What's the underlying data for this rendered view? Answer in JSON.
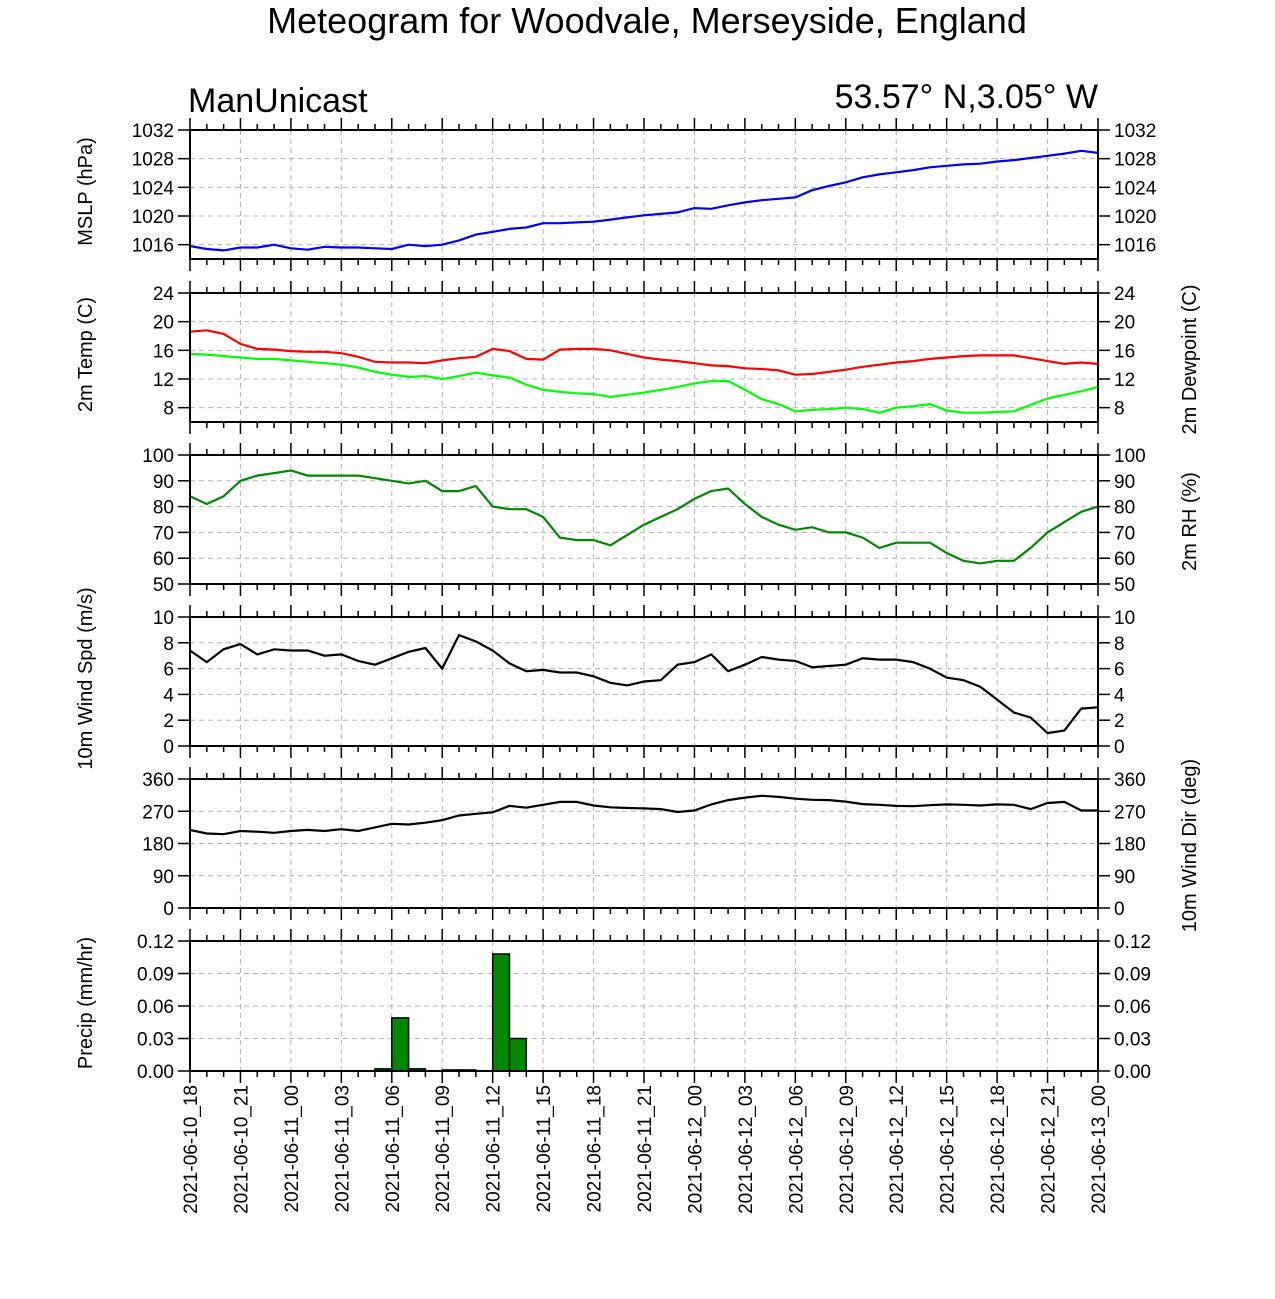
{
  "header": {
    "title": "Meteogram for Woodvale, Merseyside, England",
    "left_label": "ManUnicast",
    "right_label": "53.57° N,3.05° W"
  },
  "x_tick_labels": [
    "2021-06-10_18",
    "2021-06-10_21",
    "2021-06-11_00",
    "2021-06-11_03",
    "2021-06-11_06",
    "2021-06-11_09",
    "2021-06-11_12",
    "2021-06-11_15",
    "2021-06-11_18",
    "2021-06-11_21",
    "2021-06-12_00",
    "2021-06-12_03",
    "2021-06-12_06",
    "2021-06-12_09",
    "2021-06-12_12",
    "2021-06-12_15",
    "2021-06-12_18",
    "2021-06-12_21",
    "2021-06-13_00"
  ],
  "chart_data": [
    {
      "type": "line",
      "ylabel": "MSLP (hPa)",
      "ylim": [
        1014,
        1032
      ],
      "yticks": [
        1016,
        1020,
        1024,
        1028,
        1032
      ],
      "grid": true,
      "x": [
        0,
        1,
        2,
        3,
        4,
        5,
        6,
        7,
        8,
        9,
        10,
        11,
        12,
        13,
        14,
        15,
        16,
        17,
        18,
        19,
        20,
        21,
        22,
        23,
        24,
        25,
        26,
        27,
        28,
        29,
        30,
        31,
        32,
        33,
        34,
        35,
        36,
        37,
        38,
        39,
        40,
        41,
        42,
        43,
        44,
        45,
        46,
        47,
        48,
        49,
        50,
        51,
        52,
        53,
        54
      ],
      "series": [
        {
          "color": "#0000ff",
          "values": [
            1015.8,
            1015.4,
            1015.2,
            1015.6,
            1015.6,
            1016.0,
            1015.5,
            1015.3,
            1015.7,
            1015.6,
            1015.6,
            1015.5,
            1015.4,
            1016.0,
            1015.8,
            1016.0,
            1016.6,
            1017.4,
            1017.8,
            1018.2,
            1018.4,
            1019.0,
            1019.0,
            1019.1,
            1019.2,
            1019.5,
            1019.8,
            1020.1,
            1020.3,
            1020.5,
            1021.1,
            1021.0,
            1021.5,
            1021.9,
            1022.2,
            1022.4,
            1022.6,
            1023.6,
            1024.2,
            1024.7,
            1025.4,
            1025.8,
            1026.1,
            1026.4,
            1026.8,
            1027.0,
            1027.2,
            1027.3,
            1027.6,
            1027.8,
            1028.1,
            1028.4,
            1028.7,
            1029.1,
            1028.8
          ]
        }
      ]
    },
    {
      "type": "line",
      "ylabel": "2m Temp (C)",
      "ylabel_right": "2m Dewpoint (C)",
      "ylim": [
        6,
        24
      ],
      "yticks": [
        8,
        12,
        16,
        20,
        24
      ],
      "grid": true,
      "x": [
        0,
        1,
        2,
        3,
        4,
        5,
        6,
        7,
        8,
        9,
        10,
        11,
        12,
        13,
        14,
        15,
        16,
        17,
        18,
        19,
        20,
        21,
        22,
        23,
        24,
        25,
        26,
        27,
        28,
        29,
        30,
        31,
        32,
        33,
        34,
        35,
        36,
        37,
        38,
        39,
        40,
        41,
        42,
        43,
        44,
        45,
        46,
        47,
        48,
        49,
        50,
        51,
        52,
        53,
        54
      ],
      "series": [
        {
          "color": "#ff0000",
          "values": [
            18.6,
            18.8,
            18.3,
            16.9,
            16.2,
            16.1,
            15.9,
            15.8,
            15.8,
            15.6,
            15.1,
            14.4,
            14.3,
            14.3,
            14.2,
            14.6,
            14.9,
            15.1,
            16.2,
            15.9,
            14.8,
            14.7,
            16.1,
            16.2,
            16.2,
            16.0,
            15.5,
            15.0,
            14.7,
            14.5,
            14.2,
            13.9,
            13.8,
            13.5,
            13.4,
            13.2,
            12.6,
            12.7,
            13.0,
            13.3,
            13.7,
            14.0,
            14.3,
            14.5,
            14.8,
            15.0,
            15.2,
            15.3,
            15.3,
            15.3,
            14.9,
            14.5,
            14.1,
            14.3,
            14.1
          ]
        },
        {
          "color": "#00ff00",
          "values": [
            15.5,
            15.4,
            15.2,
            15.0,
            14.8,
            14.8,
            14.6,
            14.4,
            14.2,
            14.0,
            13.6,
            13.0,
            12.6,
            12.3,
            12.4,
            12.0,
            12.4,
            12.9,
            12.5,
            12.2,
            11.2,
            10.5,
            10.2,
            10.0,
            9.9,
            9.5,
            9.8,
            10.1,
            10.5,
            10.9,
            11.4,
            11.7,
            11.7,
            10.5,
            9.2,
            8.5,
            7.5,
            7.7,
            7.8,
            8.0,
            7.8,
            7.3,
            8.0,
            8.2,
            8.5,
            7.6,
            7.3,
            7.3,
            7.4,
            7.5,
            8.4,
            9.3,
            9.8,
            10.3,
            10.9
          ]
        }
      ]
    },
    {
      "type": "line",
      "ylabel_right": "2m RH (%)",
      "ylim": [
        50,
        100
      ],
      "yticks": [
        50,
        60,
        70,
        80,
        90,
        100
      ],
      "grid": true,
      "x": [
        0,
        1,
        2,
        3,
        4,
        5,
        6,
        7,
        8,
        9,
        10,
        11,
        12,
        13,
        14,
        15,
        16,
        17,
        18,
        19,
        20,
        21,
        22,
        23,
        24,
        25,
        26,
        27,
        28,
        29,
        30,
        31,
        32,
        33,
        34,
        35,
        36,
        37,
        38,
        39,
        40,
        41,
        42,
        43,
        44,
        45,
        46,
        47,
        48,
        49,
        50,
        51,
        52,
        53,
        54
      ],
      "series": [
        {
          "color": "#008800",
          "values": [
            84,
            81,
            84,
            90,
            92,
            93,
            94,
            92,
            92,
            92,
            92,
            91,
            90,
            89,
            90,
            86,
            86,
            88,
            80,
            79,
            79,
            76,
            68,
            67,
            67,
            65,
            69,
            73,
            76,
            79,
            83,
            86,
            87,
            81,
            76,
            73,
            71,
            72,
            70,
            70,
            68,
            64,
            66,
            66,
            66,
            62,
            59,
            58,
            59,
            59,
            64,
            70,
            74,
            78,
            80
          ]
        }
      ]
    },
    {
      "type": "line",
      "ylabel": "10m Wind Spd (m/s)",
      "ylim": [
        0,
        10
      ],
      "yticks": [
        0,
        2,
        4,
        6,
        8,
        10
      ],
      "grid": true,
      "x": [
        0,
        1,
        2,
        3,
        4,
        5,
        6,
        7,
        8,
        9,
        10,
        11,
        12,
        13,
        14,
        15,
        16,
        17,
        18,
        19,
        20,
        21,
        22,
        23,
        24,
        25,
        26,
        27,
        28,
        29,
        30,
        31,
        32,
        33,
        34,
        35,
        36,
        37,
        38,
        39,
        40,
        41,
        42,
        43,
        44,
        45,
        46,
        47,
        48,
        49,
        50,
        51,
        52,
        53,
        54
      ],
      "series": [
        {
          "color": "#000000",
          "values": [
            7.4,
            6.5,
            7.5,
            7.9,
            7.1,
            7.5,
            7.4,
            7.4,
            7.0,
            7.1,
            6.6,
            6.3,
            6.8,
            7.3,
            7.6,
            6.0,
            8.6,
            8.1,
            7.4,
            6.4,
            5.8,
            5.9,
            5.7,
            5.7,
            5.4,
            4.9,
            4.7,
            5.0,
            5.1,
            6.3,
            6.5,
            7.1,
            5.8,
            6.3,
            6.9,
            6.7,
            6.6,
            6.1,
            6.2,
            6.3,
            6.8,
            6.7,
            6.7,
            6.5,
            6.0,
            5.3,
            5.1,
            4.6,
            3.6,
            2.6,
            2.2,
            1.0,
            1.2,
            2.9,
            3.0
          ]
        }
      ]
    },
    {
      "type": "line",
      "ylabel_right": "10m Wind Dir (deg)",
      "ylim": [
        0,
        360
      ],
      "yticks": [
        0,
        90,
        180,
        270,
        360
      ],
      "grid": true,
      "x": [
        0,
        1,
        2,
        3,
        4,
        5,
        6,
        7,
        8,
        9,
        10,
        11,
        12,
        13,
        14,
        15,
        16,
        17,
        18,
        19,
        20,
        21,
        22,
        23,
        24,
        25,
        26,
        27,
        28,
        29,
        30,
        31,
        32,
        33,
        34,
        35,
        36,
        37,
        38,
        39,
        40,
        41,
        42,
        43,
        44,
        45,
        46,
        47,
        48,
        49,
        50,
        51,
        52,
        53,
        54
      ],
      "series": [
        {
          "color": "#000000",
          "values": [
            218,
            208,
            206,
            215,
            213,
            210,
            215,
            218,
            215,
            220,
            215,
            225,
            235,
            233,
            238,
            245,
            258,
            263,
            267,
            285,
            280,
            288,
            296,
            296,
            286,
            281,
            279,
            278,
            276,
            268,
            272,
            289,
            301,
            308,
            313,
            310,
            305,
            302,
            301,
            297,
            290,
            288,
            285,
            284,
            287,
            289,
            288,
            286,
            289,
            288,
            276,
            293,
            296,
            272,
            272
          ]
        }
      ]
    },
    {
      "type": "bar",
      "ylabel": "Precip (mm/hr)",
      "ylim": [
        0,
        0.12
      ],
      "yticks": [
        "0.00",
        "0.03",
        "0.06",
        "0.09",
        "0.12"
      ],
      "grid": true,
      "color": "#008800",
      "x": [
        11,
        12,
        13,
        15,
        16,
        18,
        19
      ],
      "values": [
        0.002,
        0.049,
        0.002,
        0.001,
        0.001,
        0.108,
        0.03
      ]
    }
  ]
}
